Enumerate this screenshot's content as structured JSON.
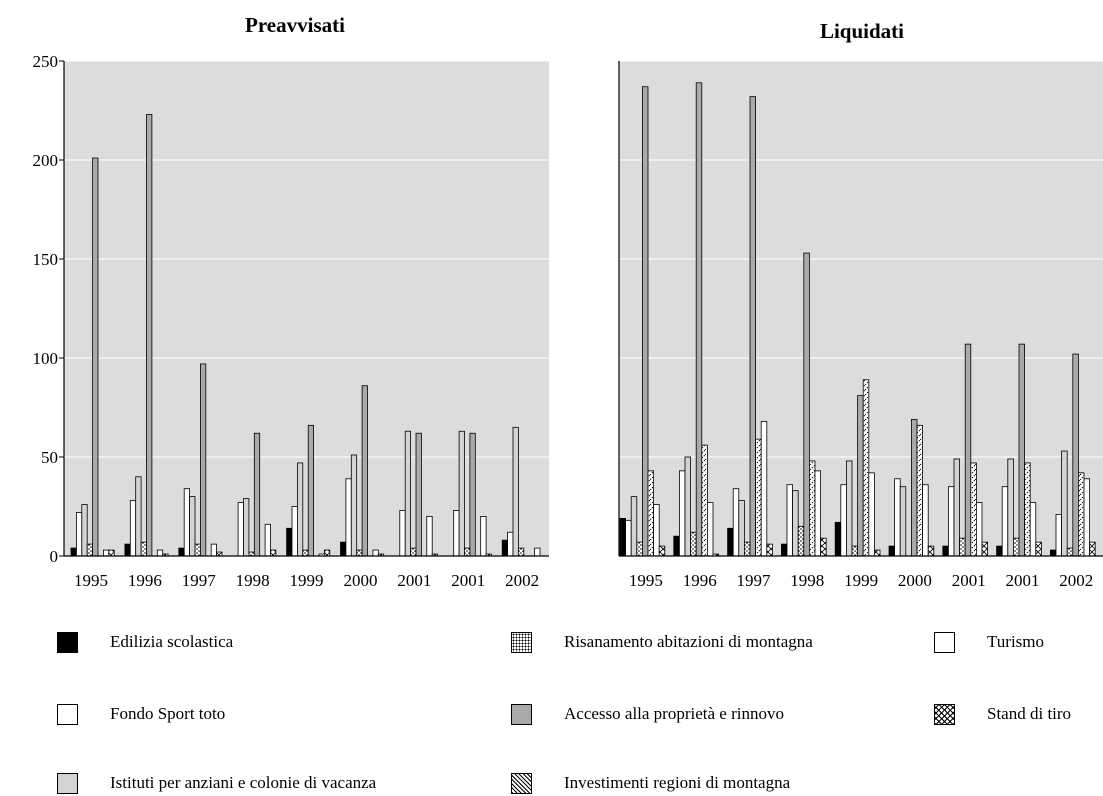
{
  "colors": {
    "plot_bg": "#dcdcdc",
    "edilizia": "#000000",
    "fondo_sport": "#ffffff",
    "istituti": "#d3d3d3",
    "risanamento": "#ffffff",
    "accesso": "#a9a9a9",
    "investimenti": "#ffffff",
    "turismo": "#ffffff",
    "stand": "#ffffff"
  },
  "legend": [
    {
      "key": "edilizia",
      "label": "Edilizia scolastica",
      "pattern": "solid"
    },
    {
      "key": "fondo_sport",
      "label": "Fondo Sport toto",
      "pattern": "solid"
    },
    {
      "key": "istituti",
      "label": "Istituti per anziani e colonie di vacanza",
      "pattern": "solid"
    },
    {
      "key": "risanamento",
      "label": "Risanamento abitazioni di montagna",
      "pattern": "dots"
    },
    {
      "key": "accesso",
      "label": "Accesso alla proprietà e rinnovo",
      "pattern": "solid"
    },
    {
      "key": "investimenti",
      "label": "Investimenti regioni di montagna",
      "pattern": "dashes"
    },
    {
      "key": "turismo",
      "label": "Turismo",
      "pattern": "solid"
    },
    {
      "key": "stand",
      "label": "Stand di tiro",
      "pattern": "checks"
    }
  ],
  "chart_data": [
    {
      "type": "bar",
      "title": "Preavvisati",
      "categories": [
        "1995",
        "1996",
        "1997",
        "1998",
        "1999",
        "2000",
        "2001",
        "2001",
        "2002"
      ],
      "ylim": [
        0,
        250
      ],
      "yticks": [
        0,
        50,
        100,
        150,
        200,
        250
      ],
      "grid": true,
      "series": [
        {
          "name": "Edilizia scolastica",
          "key": "edilizia",
          "values": [
            4,
            6,
            4,
            0,
            14,
            7,
            0,
            0,
            8
          ]
        },
        {
          "name": "Fondo Sport toto",
          "key": "fondo_sport",
          "values": [
            22,
            28,
            34,
            27,
            25,
            39,
            23,
            23,
            12
          ]
        },
        {
          "name": "Istituti per anziani e colonie di vacanza",
          "key": "istituti",
          "values": [
            26,
            40,
            30,
            29,
            47,
            51,
            63,
            63,
            65
          ]
        },
        {
          "name": "Risanamento abitazioni di montagna",
          "key": "risanamento",
          "values": [
            6,
            7,
            6,
            2,
            3,
            3,
            4,
            4,
            4
          ]
        },
        {
          "name": "Accesso alla proprietà e rinnovo",
          "key": "accesso",
          "values": [
            201,
            223,
            97,
            62,
            66,
            86,
            62,
            62,
            0
          ]
        },
        {
          "name": "Investimenti regioni di montagna",
          "key": "investimenti",
          "values": [
            0,
            0,
            0,
            0,
            0,
            0,
            0,
            0,
            0
          ]
        },
        {
          "name": "Turismo",
          "key": "turismo",
          "values": [
            3,
            3,
            6,
            16,
            1,
            3,
            20,
            20,
            4
          ]
        },
        {
          "name": "Stand di tiro",
          "key": "stand",
          "values": [
            3,
            1,
            2,
            3,
            3,
            1,
            1,
            1,
            0
          ]
        }
      ]
    },
    {
      "type": "bar",
      "title": "Liquidati",
      "categories": [
        "1995",
        "1996",
        "1997",
        "1998",
        "1999",
        "2000",
        "2001",
        "2001",
        "2002"
      ],
      "ylim": [
        0,
        250
      ],
      "grid": true,
      "series": [
        {
          "name": "Edilizia scolastica",
          "key": "edilizia",
          "values": [
            19,
            10,
            14,
            6,
            17,
            5,
            5,
            5,
            3
          ]
        },
        {
          "name": "Fondo Sport toto",
          "key": "fondo_sport",
          "values": [
            18,
            43,
            34,
            36,
            36,
            39,
            35,
            35,
            21
          ]
        },
        {
          "name": "Istituti per anziani e colonie di vacanza",
          "key": "istituti",
          "values": [
            30,
            50,
            28,
            33,
            48,
            35,
            49,
            49,
            53
          ]
        },
        {
          "name": "Risanamento abitazioni di montagna",
          "key": "risanamento",
          "values": [
            7,
            12,
            7,
            15,
            5,
            0,
            9,
            9,
            4
          ]
        },
        {
          "name": "Accesso alla proprietà e rinnovo",
          "key": "accesso",
          "values": [
            237,
            239,
            232,
            153,
            81,
            69,
            107,
            107,
            102
          ]
        },
        {
          "name": "Investimenti regioni di montagna",
          "key": "investimenti",
          "values": [
            43,
            56,
            59,
            48,
            89,
            66,
            47,
            47,
            42
          ]
        },
        {
          "name": "Turismo",
          "key": "turismo",
          "values": [
            26,
            27,
            68,
            43,
            42,
            36,
            27,
            27,
            39
          ]
        },
        {
          "name": "Stand di tiro",
          "key": "stand",
          "values": [
            5,
            1,
            6,
            9,
            3,
            5,
            7,
            7,
            7
          ]
        }
      ]
    }
  ]
}
